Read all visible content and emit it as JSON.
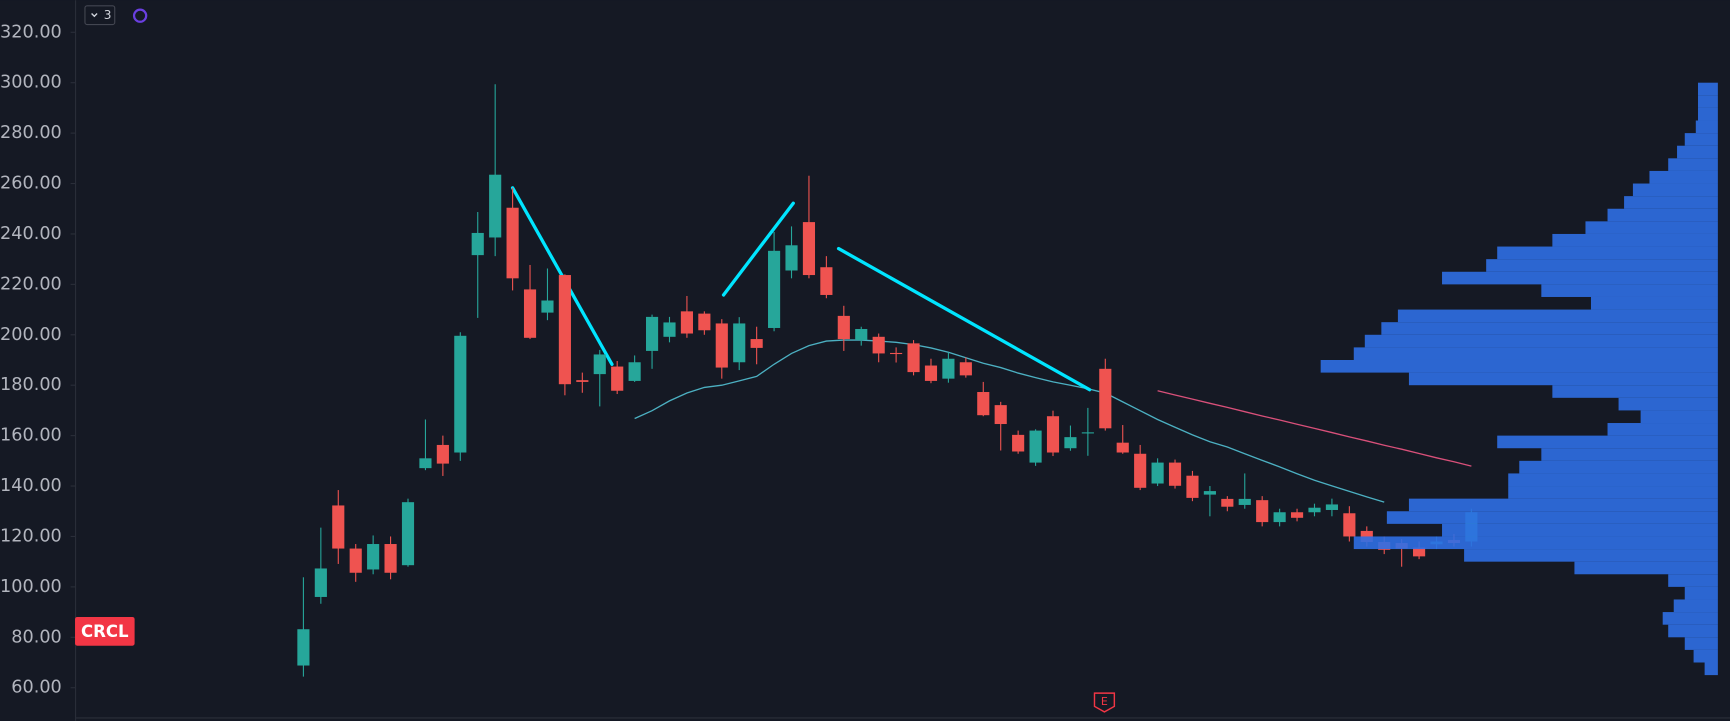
{
  "chart_data": {
    "type": "candlestick",
    "symbol": "CRCL",
    "indicator_count": "3",
    "earnings_marker": "E",
    "ylim": [
      46.9,
      332.7
    ],
    "yticks": [
      {
        "value": 60,
        "label": "60.00"
      },
      {
        "value": 80,
        "label": "80.00"
      },
      {
        "value": 100,
        "label": "100.00"
      },
      {
        "value": 120,
        "label": "120.00"
      },
      {
        "value": 140,
        "label": "140.00"
      },
      {
        "value": 160,
        "label": "160.00"
      },
      {
        "value": 180,
        "label": "180.00"
      },
      {
        "value": 200,
        "label": "200.00"
      },
      {
        "value": 220,
        "label": "220.00"
      },
      {
        "value": 240,
        "label": "240.00"
      },
      {
        "value": 260,
        "label": "260.00"
      },
      {
        "value": 280,
        "label": "280.00"
      },
      {
        "value": 300,
        "label": "300.00"
      },
      {
        "value": 320,
        "label": "320.00"
      }
    ],
    "up_color": "#26a69a",
    "down_color": "#ef5350",
    "open": [
      68.8,
      96,
      132.3,
      115.2,
      106.9,
      117,
      108.6,
      147.1,
      156.3,
      153.3,
      231.6,
      238.6,
      250.4,
      218,
      208.8,
      223.7,
      182,
      184.4,
      187.4,
      181.7,
      193.6,
      199.2,
      209.3,
      208.4,
      204.5,
      189.1,
      198.3,
      202.7,
      225.5,
      244.7,
      226.8,
      207.5,
      197.9,
      199.2,
      192.8,
      196.6,
      187.8,
      182.6,
      189.1,
      177.3,
      172.1,
      160.3,
      149.3,
      167.7,
      155,
      161,
      186.5,
      157.2,
      152.8,
      141,
      149.3,
      144.1,
      136.6,
      134.9,
      132.5,
      134.4,
      125.7,
      129.6,
      129.6,
      130.5,
      129.2,
      122.2,
      117.8,
      117.4,
      115.6,
      116.9,
      118.6,
      118
    ],
    "high": [
      103.8,
      123.5,
      138.4,
      117,
      120.4,
      120,
      135,
      166.4,
      160,
      201,
      248.7,
      299.4,
      258.3,
      227.7,
      226.3,
      224,
      185,
      194,
      189.6,
      191.8,
      208,
      207.1,
      215.4,
      209.3,
      206.2,
      207,
      203.2,
      240.8,
      243,
      263.1,
      231.2,
      211.5,
      203.2,
      200.5,
      195,
      197.9,
      190.5,
      193,
      191,
      181.3,
      173.4,
      162,
      162.5,
      169.9,
      164,
      171,
      190.5,
      164.2,
      156.3,
      151,
      150.5,
      146,
      140,
      136,
      145,
      136,
      131,
      131,
      133,
      135,
      132,
      124,
      120,
      119,
      118,
      120,
      121,
      131
    ],
    "low": [
      64.4,
      93.3,
      109.1,
      102,
      105,
      103,
      108,
      146.3,
      144,
      150,
      206.7,
      231.2,
      217.6,
      198.3,
      205.8,
      176,
      177,
      171.6,
      176.5,
      181.3,
      186.5,
      197,
      198.8,
      200,
      182.6,
      186,
      188.3,
      201.4,
      222.4,
      222.4,
      214.5,
      193.6,
      195.7,
      189.1,
      189,
      183.9,
      180.8,
      181,
      183,
      167.7,
      154.1,
      152.8,
      148,
      151.9,
      154,
      152,
      162,
      152.8,
      138.4,
      140,
      139,
      134,
      128,
      130,
      131,
      124,
      124,
      126,
      128,
      128,
      118,
      116,
      113,
      108,
      111,
      115,
      116,
      116
    ],
    "close": [
      83.2,
      107.3,
      115.2,
      105.6,
      117,
      105.6,
      133.6,
      151,
      148.9,
      199.6,
      240.4,
      263.5,
      222.4,
      198.8,
      213.6,
      180.4,
      181.3,
      192.2,
      177.8,
      189.1,
      207.1,
      204.9,
      200.5,
      201.8,
      187,
      204.5,
      194.8,
      233.3,
      235.5,
      223.7,
      215.8,
      198.3,
      202.3,
      192.6,
      192.4,
      185.2,
      181.7,
      190.5,
      183.9,
      168.1,
      164.6,
      153.7,
      162,
      153.3,
      159.4,
      161.3,
      162.9,
      153.3,
      139.3,
      149.3,
      140.1,
      135.3,
      138,
      131.8,
      134.9,
      125.7,
      129.6,
      127.4,
      131.4,
      132.7,
      120,
      117.8,
      114.7,
      115.2,
      112.1,
      118,
      117.4,
      129.6
    ],
    "series": [
      {
        "color": "#4cb0c2",
        "values": [
          null,
          null,
          null,
          null,
          null,
          null,
          null,
          null,
          null,
          null,
          null,
          null,
          null,
          null,
          null,
          null,
          null,
          null,
          null,
          166.8,
          169.9,
          173.8,
          176.9,
          179.1,
          180.0,
          181.7,
          183.5,
          188.3,
          192.6,
          195.7,
          197.5,
          197.9,
          197.9,
          197.5,
          197.0,
          196.1,
          194.8,
          193.1,
          190.9,
          188.7,
          187.0,
          184.8,
          183.0,
          181.3,
          180.0,
          178.6,
          176.9,
          173.4,
          169.9,
          166.4,
          163.3,
          160.3,
          157.6,
          155.5,
          152.8,
          150.2,
          147.6,
          144.9,
          142.3,
          140.1,
          137.9,
          135.7,
          133.6,
          null,
          null,
          null,
          null,
          null
        ]
      },
      {
        "color": "#d9507a",
        "values": [
          null,
          null,
          null,
          null,
          null,
          null,
          null,
          null,
          null,
          null,
          null,
          null,
          null,
          null,
          null,
          null,
          null,
          null,
          null,
          null,
          null,
          null,
          null,
          null,
          null,
          null,
          null,
          null,
          null,
          null,
          null,
          null,
          null,
          null,
          null,
          null,
          null,
          null,
          null,
          null,
          null,
          null,
          null,
          null,
          null,
          null,
          null,
          null,
          null,
          177.8,
          176.1,
          174.5,
          172.8,
          171.2,
          169.5,
          167.8,
          166.2,
          164.5,
          162.9,
          161.2,
          159.5,
          157.9,
          156.2,
          154.6,
          152.9,
          151.2,
          149.6,
          147.9
        ]
      }
    ],
    "trendlines": {
      "color": "#00e5ff",
      "lines": [
        {
          "x": [
            12.0,
            17.7
          ],
          "y": [
            258.3,
            188.3
          ]
        },
        {
          "x": [
            24.1,
            28.1
          ],
          "y": [
            215.8,
            252.2
          ]
        },
        {
          "x": [
            30.7,
            45.1
          ],
          "y": [
            234.2,
            178.2
          ]
        }
      ]
    },
    "volume_profile": {
      "color": "#2f6fe4",
      "bins": [
        65,
        70,
        75,
        80,
        85,
        90,
        95,
        100,
        105,
        110,
        115,
        120,
        125,
        130,
        135,
        140,
        145,
        150,
        155,
        160,
        165,
        170,
        175,
        180,
        185,
        190,
        195,
        200,
        205,
        210,
        215,
        220,
        225,
        230,
        235,
        240,
        245,
        250,
        255,
        260,
        265,
        270,
        275,
        280,
        285,
        290,
        295,
        300
      ],
      "values": [
        12,
        22,
        30,
        45,
        50,
        40,
        30,
        45,
        130,
        230,
        330,
        250,
        300,
        280,
        190,
        190,
        180,
        160,
        200,
        100,
        70,
        90,
        150,
        280,
        360,
        330,
        320,
        305,
        290,
        115,
        160,
        250,
        210,
        200,
        150,
        120,
        100,
        85,
        77,
        62,
        45,
        37,
        30,
        20,
        18,
        18,
        18
      ]
    }
  }
}
